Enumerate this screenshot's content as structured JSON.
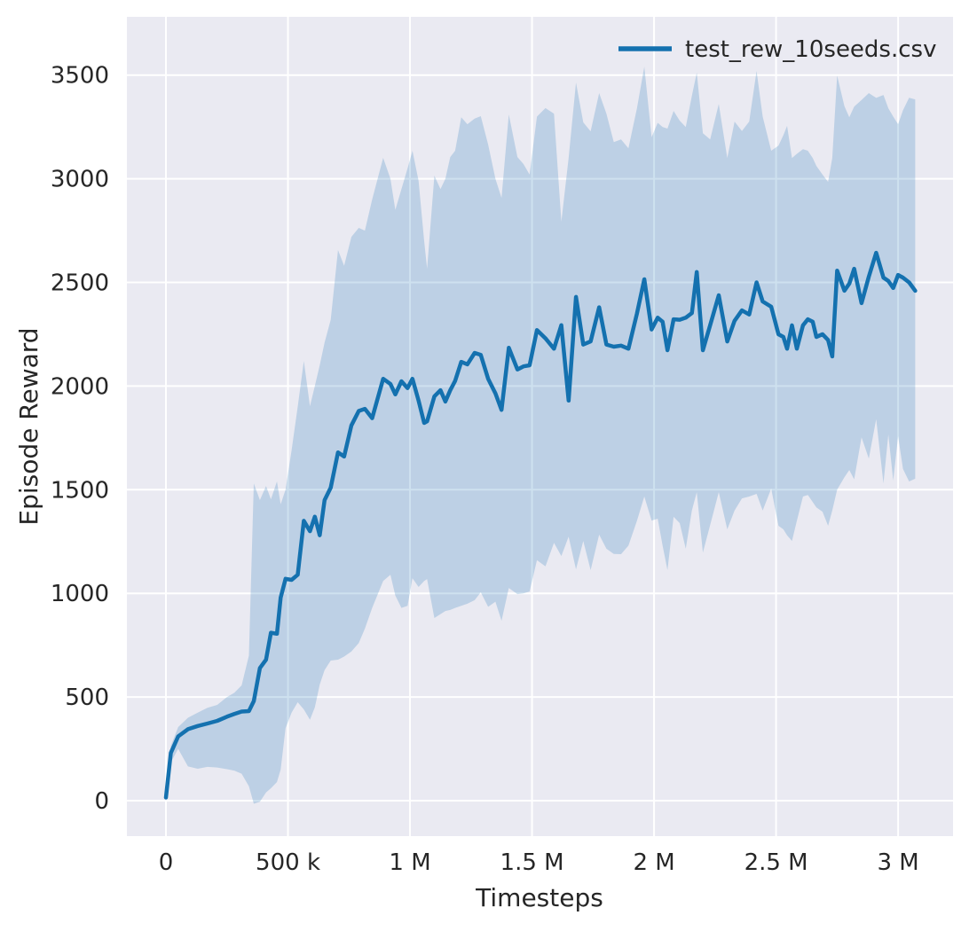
{
  "legend": {
    "label": "test_rew_10seeds.csv"
  },
  "axes": {
    "xlabel": "Timesteps",
    "ylabel": "Episode Reward"
  },
  "chart_data": {
    "type": "line",
    "title": "",
    "xlabel": "Timesteps",
    "ylabel": "Episode Reward",
    "legend_entries": [
      "test_rew_10seeds.csv"
    ],
    "legend_position": "upper right",
    "grid": true,
    "plot_bg": "#eaeaf2",
    "grid_color": "#ffffff",
    "line_color": "#1471af",
    "band_color": "rgba(31,119,180,0.22)",
    "text_color": "#262626",
    "x_range": [
      -160000,
      3225000
    ],
    "y_range": [
      -171,
      3781
    ],
    "x_ticks": [
      {
        "v": 0,
        "label": "0"
      },
      {
        "v": 500000,
        "label": "500 k"
      },
      {
        "v": 1000000,
        "label": "1 M"
      },
      {
        "v": 1500000,
        "label": "1.5 M"
      },
      {
        "v": 2000000,
        "label": "2 M"
      },
      {
        "v": 2500000,
        "label": "2.5 M"
      },
      {
        "v": 3000000,
        "label": "3 M"
      }
    ],
    "y_ticks": [
      {
        "v": 0,
        "label": "0"
      },
      {
        "v": 500,
        "label": "500"
      },
      {
        "v": 1000,
        "label": "1000"
      },
      {
        "v": 1500,
        "label": "1500"
      },
      {
        "v": 2000,
        "label": "2000"
      },
      {
        "v": 2500,
        "label": "2500"
      },
      {
        "v": 3000,
        "label": "3000"
      },
      {
        "v": 3500,
        "label": "3500"
      }
    ],
    "series": [
      {
        "name": "test_rew_10seeds.csv",
        "x": [
          0,
          20000,
          50000,
          90000,
          130000,
          170000,
          210000,
          250000,
          280000,
          310000,
          340000,
          360000,
          385000,
          410000,
          430000,
          455000,
          470000,
          490000,
          515000,
          540000,
          565000,
          590000,
          610000,
          630000,
          650000,
          675000,
          705000,
          730000,
          760000,
          790000,
          815000,
          845000,
          890000,
          920000,
          940000,
          965000,
          990000,
          1010000,
          1035000,
          1058000,
          1070000,
          1100000,
          1125000,
          1145000,
          1165000,
          1185000,
          1210000,
          1235000,
          1265000,
          1290000,
          1320000,
          1350000,
          1375000,
          1405000,
          1440000,
          1465000,
          1490000,
          1520000,
          1555000,
          1590000,
          1620000,
          1650000,
          1680000,
          1710000,
          1740000,
          1775000,
          1805000,
          1835000,
          1865000,
          1895000,
          1930000,
          1960000,
          1990000,
          2015000,
          2035000,
          2055000,
          2080000,
          2105000,
          2130000,
          2155000,
          2175000,
          2200000,
          2230000,
          2265000,
          2300000,
          2330000,
          2360000,
          2390000,
          2420000,
          2445000,
          2480000,
          2510000,
          2530000,
          2545000,
          2565000,
          2585000,
          2610000,
          2630000,
          2650000,
          2665000,
          2690000,
          2713000,
          2730000,
          2750000,
          2780000,
          2800000,
          2820000,
          2850000,
          2880000,
          2910000,
          2940000,
          2960000,
          2980000,
          3000000,
          3020000,
          3045000,
          3070000
        ],
        "mean": [
          15,
          230,
          310,
          345,
          360,
          372,
          385,
          405,
          418,
          430,
          432,
          480,
          640,
          680,
          810,
          805,
          980,
          1070,
          1065,
          1090,
          1350,
          1300,
          1370,
          1280,
          1450,
          1510,
          1680,
          1660,
          1810,
          1880,
          1890,
          1845,
          2035,
          2010,
          1960,
          2023,
          1990,
          2035,
          1930,
          1822,
          1830,
          1950,
          1980,
          1925,
          1980,
          2025,
          2117,
          2105,
          2160,
          2150,
          2035,
          1965,
          1885,
          2185,
          2080,
          2095,
          2100,
          2270,
          2230,
          2180,
          2294,
          1930,
          2430,
          2200,
          2215,
          2380,
          2200,
          2190,
          2195,
          2180,
          2350,
          2515,
          2273,
          2330,
          2310,
          2173,
          2322,
          2320,
          2330,
          2352,
          2550,
          2173,
          2294,
          2438,
          2215,
          2315,
          2365,
          2345,
          2500,
          2408,
          2383,
          2250,
          2237,
          2180,
          2293,
          2180,
          2293,
          2322,
          2310,
          2237,
          2250,
          2222,
          2143,
          2557,
          2460,
          2494,
          2566,
          2400,
          2528,
          2643,
          2523,
          2507,
          2473,
          2536,
          2523,
          2500,
          2460
        ],
        "lower": [
          5,
          185,
          250,
          165,
          154,
          163,
          160,
          152,
          145,
          130,
          70,
          -15,
          -5,
          40,
          60,
          90,
          150,
          350,
          425,
          475,
          440,
          390,
          450,
          560,
          630,
          676,
          680,
          695,
          720,
          760,
          830,
          930,
          1060,
          1090,
          990,
          930,
          940,
          1073,
          1031,
          1060,
          1069,
          881,
          900,
          915,
          920,
          930,
          940,
          950,
          967,
          1005,
          935,
          960,
          868,
          1026,
          996,
          1000,
          1009,
          1160,
          1130,
          1244,
          1180,
          1274,
          1116,
          1253,
          1112,
          1283,
          1215,
          1190,
          1189,
          1230,
          1350,
          1467,
          1351,
          1360,
          1230,
          1112,
          1369,
          1339,
          1215,
          1400,
          1488,
          1197,
          1330,
          1488,
          1309,
          1400,
          1458,
          1467,
          1480,
          1400,
          1505,
          1326,
          1309,
          1280,
          1253,
          1350,
          1467,
          1475,
          1440,
          1415,
          1394,
          1326,
          1400,
          1500,
          1560,
          1595,
          1550,
          1753,
          1650,
          1840,
          1531,
          1766,
          1544,
          1758,
          1600,
          1540,
          1553
        ],
        "upper": [
          30,
          265,
          355,
          400,
          425,
          448,
          462,
          500,
          520,
          556,
          700,
          1530,
          1450,
          1518,
          1454,
          1540,
          1430,
          1500,
          1690,
          1900,
          2121,
          1903,
          2000,
          2100,
          2210,
          2320,
          2656,
          2580,
          2720,
          2763,
          2750,
          2900,
          3101,
          3000,
          2850,
          2950,
          3050,
          3135,
          2990,
          2700,
          2566,
          3015,
          2950,
          3000,
          3105,
          3135,
          3297,
          3263,
          3290,
          3302,
          3165,
          3000,
          2908,
          3310,
          3105,
          3071,
          3020,
          3300,
          3341,
          3314,
          2793,
          3100,
          3464,
          3272,
          3229,
          3413,
          3314,
          3177,
          3190,
          3147,
          3340,
          3541,
          3200,
          3270,
          3250,
          3242,
          3327,
          3280,
          3250,
          3400,
          3512,
          3220,
          3190,
          3361,
          3100,
          3276,
          3230,
          3276,
          3520,
          3300,
          3135,
          3160,
          3210,
          3255,
          3100,
          3120,
          3143,
          3135,
          3100,
          3062,
          3020,
          2985,
          3100,
          3498,
          3350,
          3297,
          3348,
          3380,
          3413,
          3390,
          3404,
          3340,
          3300,
          3263,
          3330,
          3391,
          3383
        ]
      }
    ]
  }
}
